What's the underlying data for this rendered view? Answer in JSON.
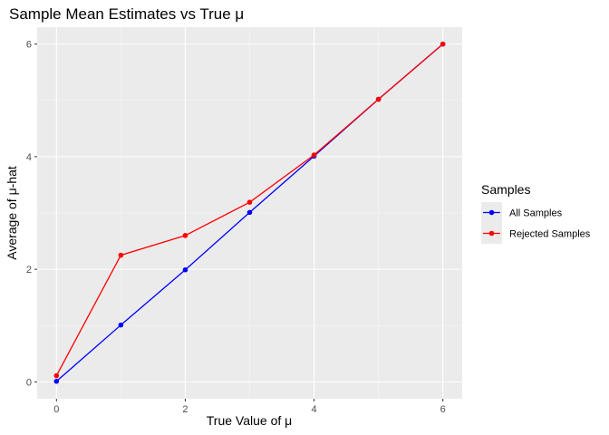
{
  "chart_data": {
    "type": "line",
    "title": "Sample Mean Estimates vs True μ",
    "xlabel": "True Value of μ",
    "ylabel": "Average of μ-hat",
    "x": [
      0,
      1,
      2,
      3,
      4,
      5,
      6
    ],
    "xlim": [
      -0.3,
      6.3
    ],
    "ylim": [
      -0.3,
      6.3
    ],
    "x_ticks": [
      "0",
      "2",
      "4",
      "6"
    ],
    "y_ticks": [
      "0",
      "2",
      "4",
      "6"
    ],
    "grid": true,
    "legend": {
      "title": "Samples",
      "position": "right"
    },
    "series": [
      {
        "name": "All Samples",
        "color": "#0000ff",
        "values": [
          0.01,
          1.01,
          1.99,
          3.01,
          4.01,
          5.02,
          6.0
        ]
      },
      {
        "name": "Rejected Samples",
        "color": "#ff0000",
        "values": [
          0.11,
          2.25,
          2.6,
          3.19,
          4.03,
          5.02,
          6.0
        ]
      }
    ]
  }
}
